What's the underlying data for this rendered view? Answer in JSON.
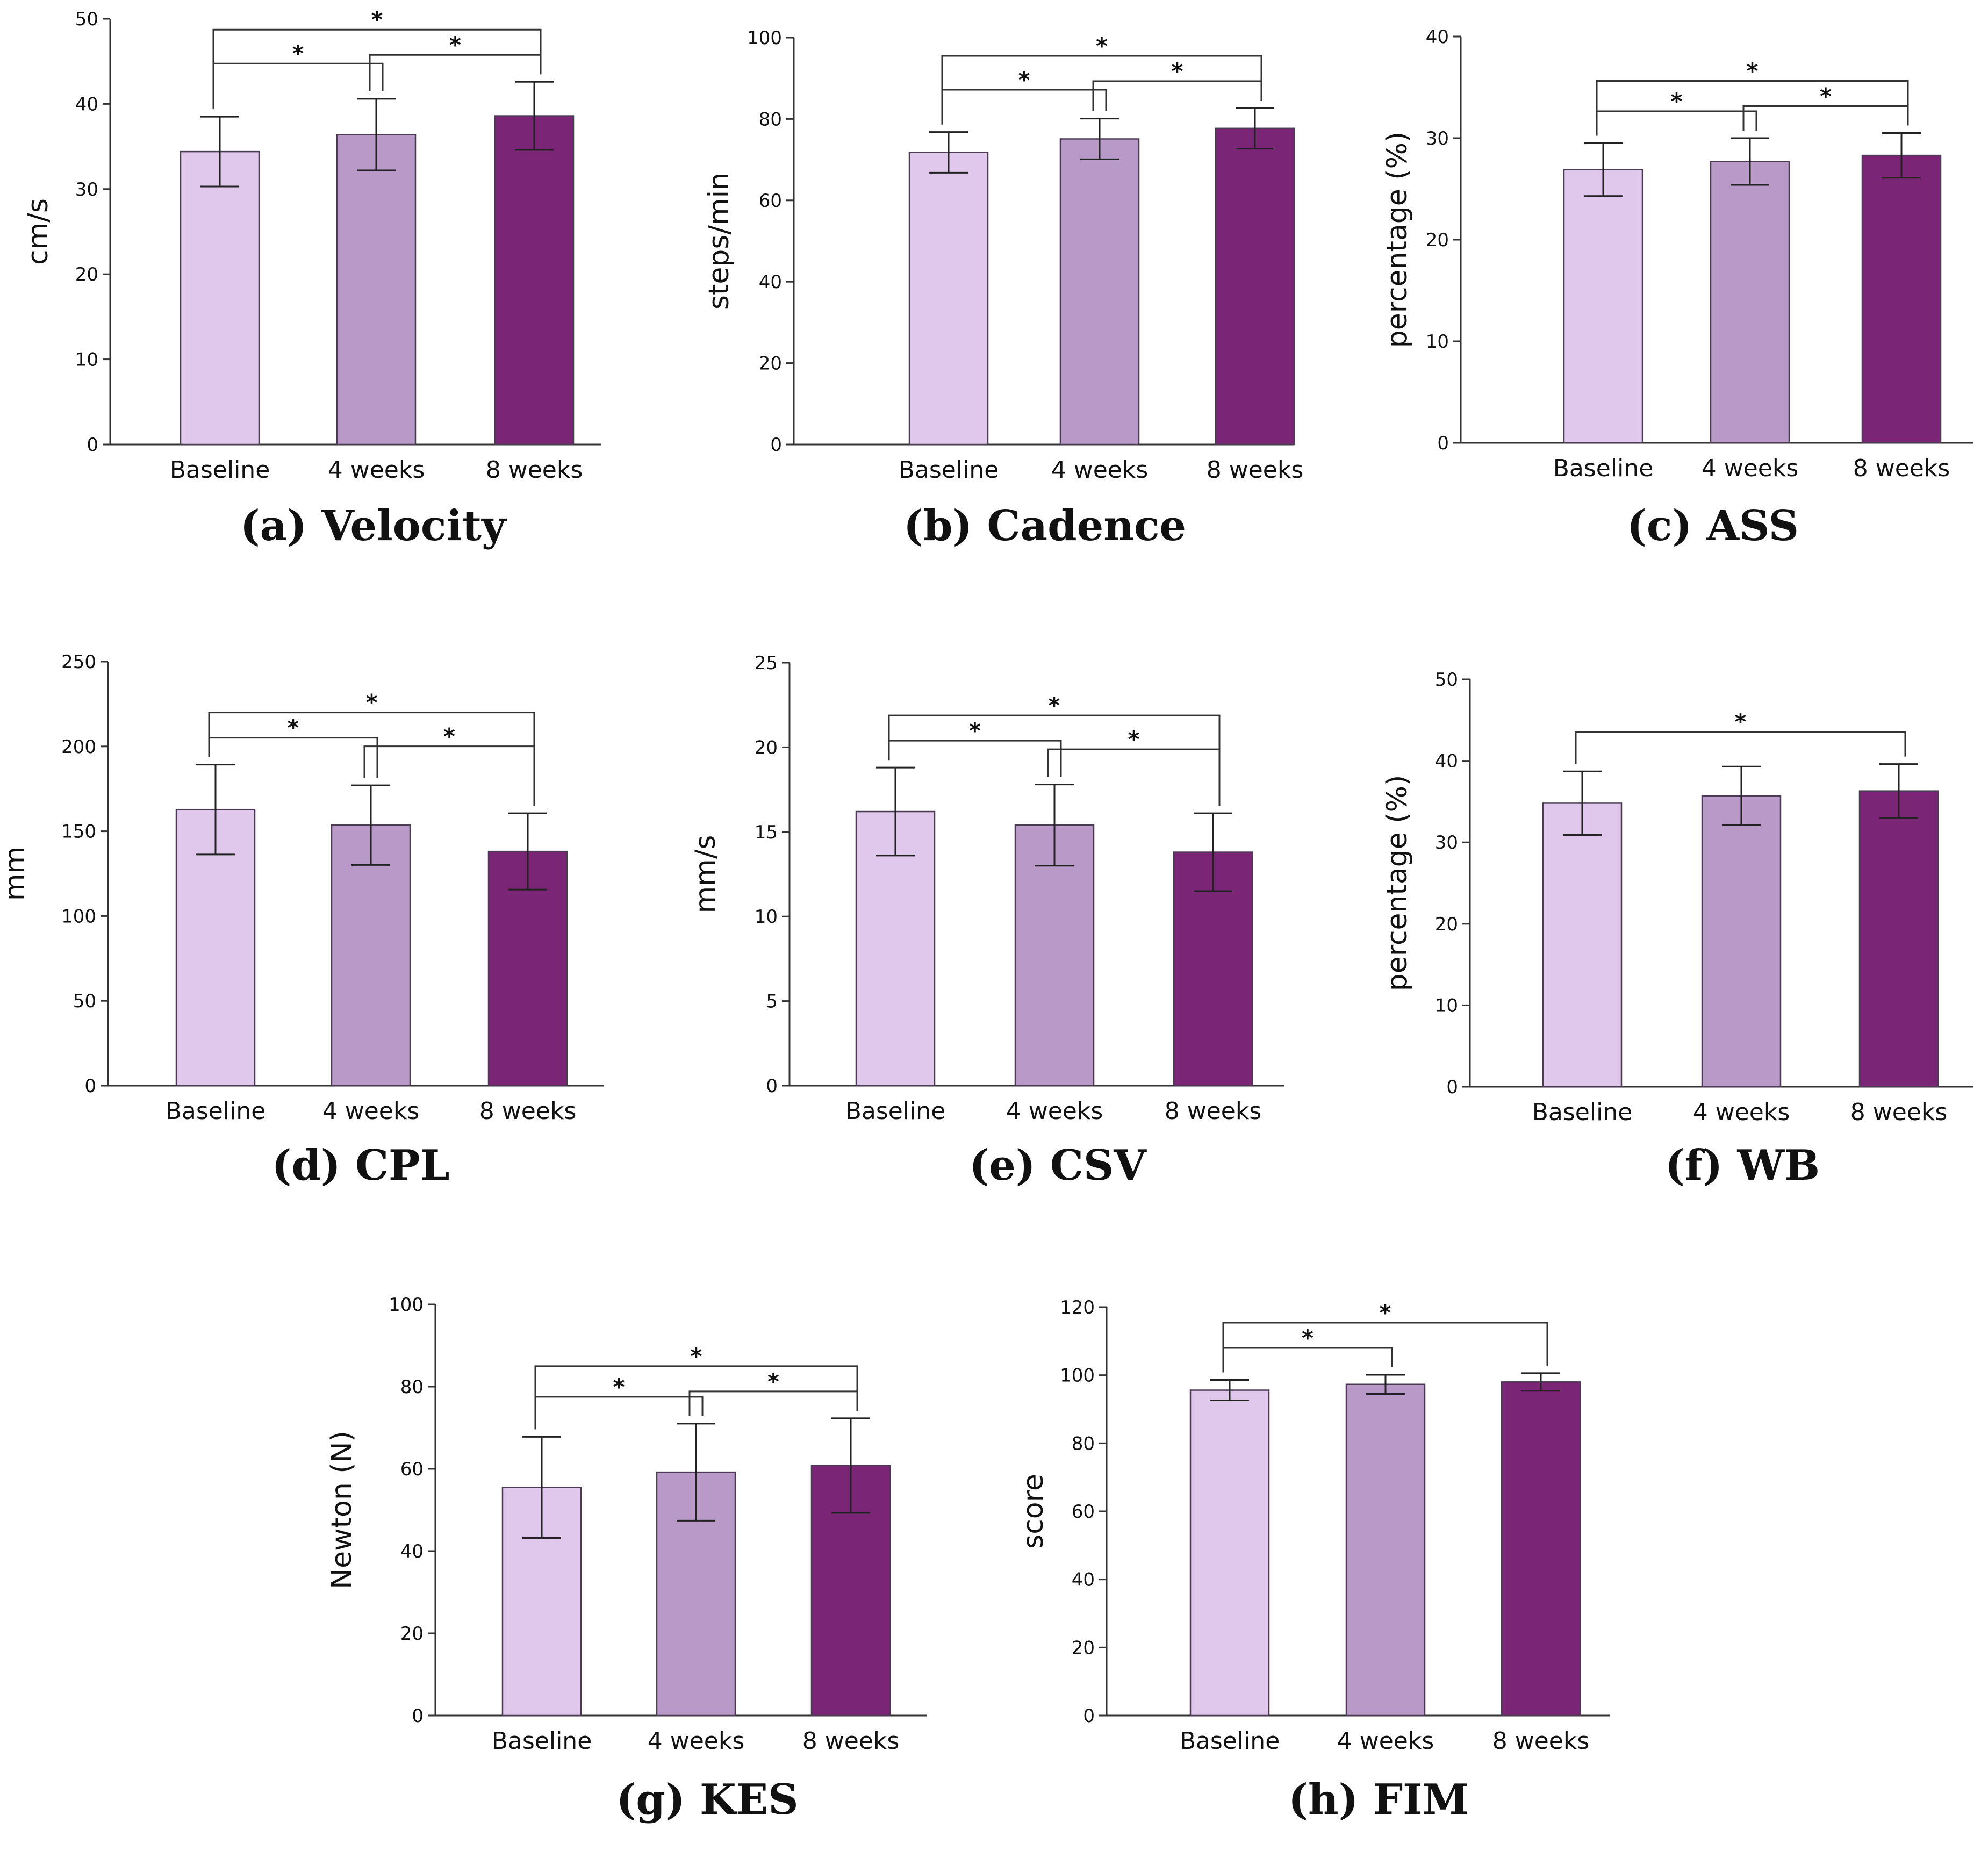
{
  "colors": {
    "baseline": "#e0c8ec",
    "week4": "#b899c8",
    "week8": "#7b2576",
    "axis": "#333333",
    "bar_edge": "#4a3a52"
  },
  "chart_data": [
    {
      "type": "bar",
      "id": "a",
      "title": "(a) Velocity",
      "xlabel": "",
      "ylabel": "cm/s",
      "categories": [
        "Baseline",
        "4 weeks",
        "8 weeks"
      ],
      "values": [
        34.4,
        36.4,
        38.6
      ],
      "errors": [
        4.1,
        4.2,
        4.0
      ],
      "ylim": [
        0,
        50
      ],
      "yticks": [
        0,
        10,
        20,
        30,
        40,
        50
      ],
      "significance": [
        {
          "from": 0,
          "to": 1,
          "label": "*"
        },
        {
          "from": 1,
          "to": 2,
          "label": "*"
        },
        {
          "from": 0,
          "to": 2,
          "label": "*"
        }
      ]
    },
    {
      "type": "bar",
      "id": "b",
      "title": "(b) Cadence",
      "xlabel": "",
      "ylabel": "steps/min",
      "categories": [
        "Baseline",
        "4 weeks",
        "8 weeks"
      ],
      "values": [
        71.8,
        75.1,
        77.7
      ],
      "errors": [
        5.0,
        5.0,
        5.0
      ],
      "ylim": [
        0,
        100
      ],
      "yticks": [
        0,
        20,
        40,
        60,
        80,
        100
      ],
      "significance": [
        {
          "from": 0,
          "to": 1,
          "label": "*"
        },
        {
          "from": 1,
          "to": 2,
          "label": "*"
        },
        {
          "from": 0,
          "to": 2,
          "label": "*"
        }
      ]
    },
    {
      "type": "bar",
      "id": "c",
      "title": "(c) ASS",
      "xlabel": "",
      "ylabel": "percentage (%)",
      "categories": [
        "Baseline",
        "4 weeks",
        "8 weeks"
      ],
      "values": [
        26.9,
        27.7,
        28.3
      ],
      "errors": [
        2.6,
        2.3,
        2.2
      ],
      "ylim": [
        0,
        40
      ],
      "yticks": [
        0,
        10,
        20,
        30,
        40
      ],
      "significance": [
        {
          "from": 0,
          "to": 1,
          "label": "*"
        },
        {
          "from": 1,
          "to": 2,
          "label": "*"
        },
        {
          "from": 0,
          "to": 2,
          "label": "*"
        }
      ]
    },
    {
      "type": "bar",
      "id": "d",
      "title": "(d) CPL",
      "xlabel": "",
      "ylabel": "mm",
      "categories": [
        "Baseline",
        "4 weeks",
        "8 weeks"
      ],
      "values": [
        162.8,
        153.6,
        138.1
      ],
      "errors": [
        26.5,
        23.5,
        22.5
      ],
      "ylim": [
        0,
        250
      ],
      "yticks": [
        0,
        50,
        100,
        150,
        200,
        250
      ],
      "significance": [
        {
          "from": 0,
          "to": 1,
          "label": "*"
        },
        {
          "from": 1,
          "to": 2,
          "label": "*"
        },
        {
          "from": 0,
          "to": 2,
          "label": "*"
        }
      ]
    },
    {
      "type": "bar",
      "id": "e",
      "title": "(e) CSV",
      "xlabel": "",
      "ylabel": "mm/s",
      "categories": [
        "Baseline",
        "4 weeks",
        "8 weeks"
      ],
      "values": [
        16.2,
        15.4,
        13.8
      ],
      "errors": [
        2.6,
        2.4,
        2.3
      ],
      "ylim": [
        0,
        25
      ],
      "yticks": [
        0,
        5,
        10,
        15,
        20,
        25
      ],
      "significance": [
        {
          "from": 0,
          "to": 1,
          "label": "*"
        },
        {
          "from": 1,
          "to": 2,
          "label": "*"
        },
        {
          "from": 0,
          "to": 2,
          "label": "*"
        }
      ]
    },
    {
      "type": "bar",
      "id": "f",
      "title": "(f) WB",
      "xlabel": "",
      "ylabel": "percentage (%)",
      "categories": [
        "Baseline",
        "4 weeks",
        "8 weeks"
      ],
      "values": [
        34.8,
        35.7,
        36.3
      ],
      "errors": [
        3.9,
        3.6,
        3.3
      ],
      "ylim": [
        0,
        50
      ],
      "yticks": [
        0,
        10,
        20,
        30,
        40,
        50
      ],
      "significance": [
        {
          "from": 0,
          "to": 2,
          "label": "*"
        }
      ]
    },
    {
      "type": "bar",
      "id": "g",
      "title": "(g) KES",
      "xlabel": "",
      "ylabel": "Newton (N)",
      "categories": [
        "Baseline",
        "4 weeks",
        "8 weeks"
      ],
      "values": [
        55.5,
        59.2,
        60.8
      ],
      "errors": [
        12.3,
        11.8,
        11.5
      ],
      "ylim": [
        0,
        100
      ],
      "yticks": [
        0,
        20,
        40,
        60,
        80,
        100
      ],
      "significance": [
        {
          "from": 0,
          "to": 1,
          "label": "*"
        },
        {
          "from": 1,
          "to": 2,
          "label": "*"
        },
        {
          "from": 0,
          "to": 2,
          "label": "*"
        }
      ]
    },
    {
      "type": "bar",
      "id": "h",
      "title": "(h) FIM",
      "xlabel": "",
      "ylabel": "score",
      "categories": [
        "Baseline",
        "4 weeks",
        "8 weeks"
      ],
      "values": [
        95.6,
        97.3,
        98.0
      ],
      "errors": [
        3.0,
        2.8,
        2.6
      ],
      "ylim": [
        0,
        120
      ],
      "yticks": [
        0,
        20,
        40,
        60,
        80,
        100,
        120
      ],
      "significance": [
        {
          "from": 0,
          "to": 1,
          "label": "*"
        },
        {
          "from": 0,
          "to": 2,
          "label": "*"
        }
      ]
    }
  ]
}
